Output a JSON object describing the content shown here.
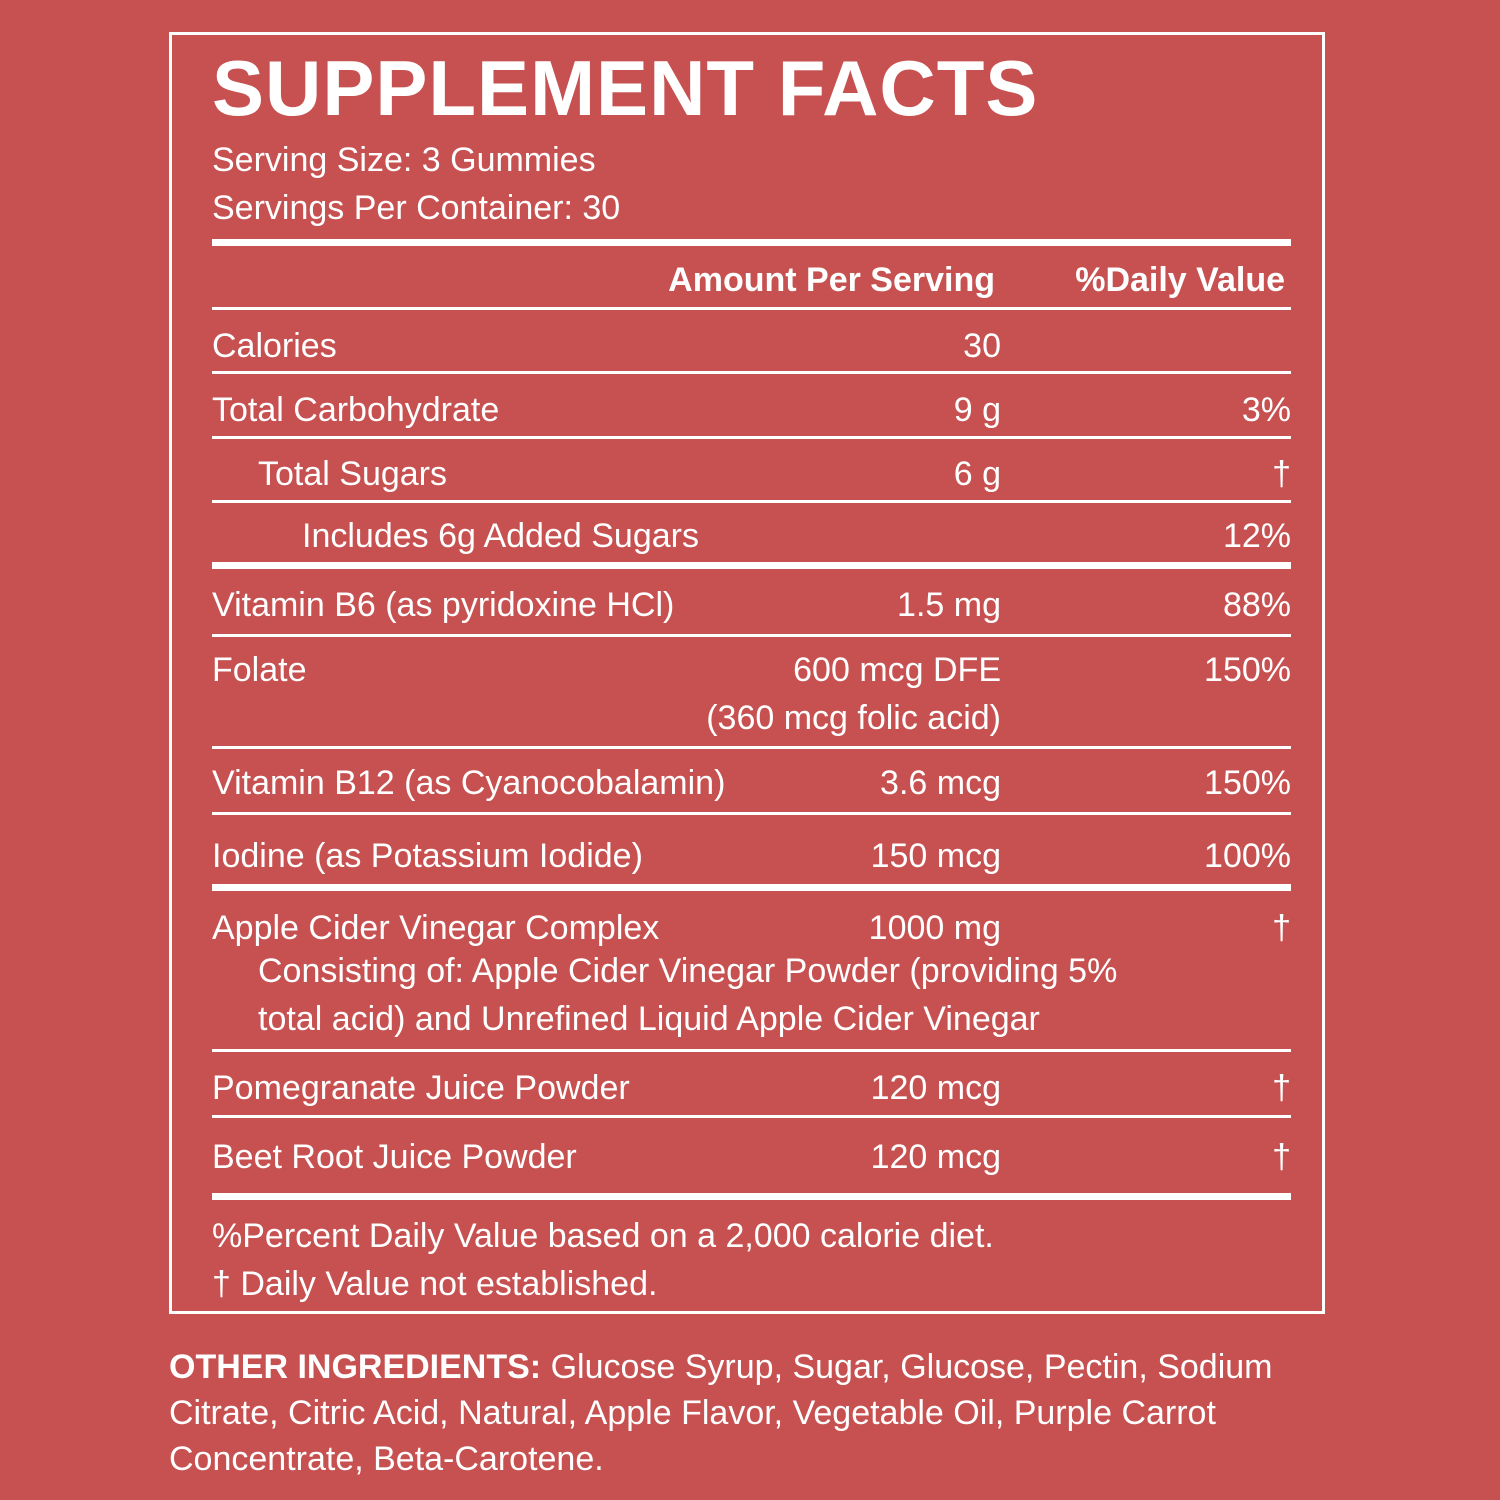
{
  "title": "SUPPLEMENT FACTS",
  "serving_size": "Serving Size: 3 Gummies",
  "servings_per_container": "Servings Per Container: 30",
  "headers": {
    "amount": "Amount Per Serving",
    "daily_value": "%Daily Value"
  },
  "rows": [
    {
      "name": "Calories",
      "amount": "30",
      "dv": ""
    },
    {
      "name": "Total Carbohydrate",
      "amount": "9 g",
      "dv": "3%"
    },
    {
      "name": "Total Sugars",
      "amount": "6 g",
      "dv": "†"
    },
    {
      "name": "Includes 6g Added Sugars",
      "amount": "",
      "dv": "12%"
    },
    {
      "name": "Vitamin B6 (as pyridoxine HCl)",
      "amount": "1.5 mg",
      "dv": "88%"
    },
    {
      "name": "Folate",
      "amount": "600 mcg DFE",
      "amount2": "(360 mcg folic acid)",
      "dv": "150%"
    },
    {
      "name": "Vitamin B12 (as Cyanocobalamin)",
      "amount": "3.6 mcg",
      "dv": "150%"
    },
    {
      "name": "Iodine (as Potassium Iodide)",
      "amount": "150 mcg",
      "dv": "100%"
    },
    {
      "name": "Apple Cider Vinegar Complex",
      "amount": "1000 mg",
      "dv": "†",
      "detail1": "Consisting of: Apple Cider Vinegar Powder (providing 5%",
      "detail2": "total acid) and Unrefined Liquid Apple Cider Vinegar"
    },
    {
      "name": "Pomegranate Juice Powder",
      "amount": "120 mcg",
      "dv": "†"
    },
    {
      "name": "Beet Root Juice Powder",
      "amount": "120 mcg",
      "dv": "†"
    }
  ],
  "footnotes": [
    "%Percent Daily Value based on a 2,000 calorie diet.",
    "† Daily Value not established."
  ],
  "other_ingredients": {
    "label": "OTHER INGREDIENTS:",
    "text": " Glucose Syrup, Sugar, Glucose, Pectin, Sodium Citrate, Citric Acid, Natural, Apple Flavor, Vegetable Oil, Purple Carrot Concentrate, Beta-Carotene."
  }
}
